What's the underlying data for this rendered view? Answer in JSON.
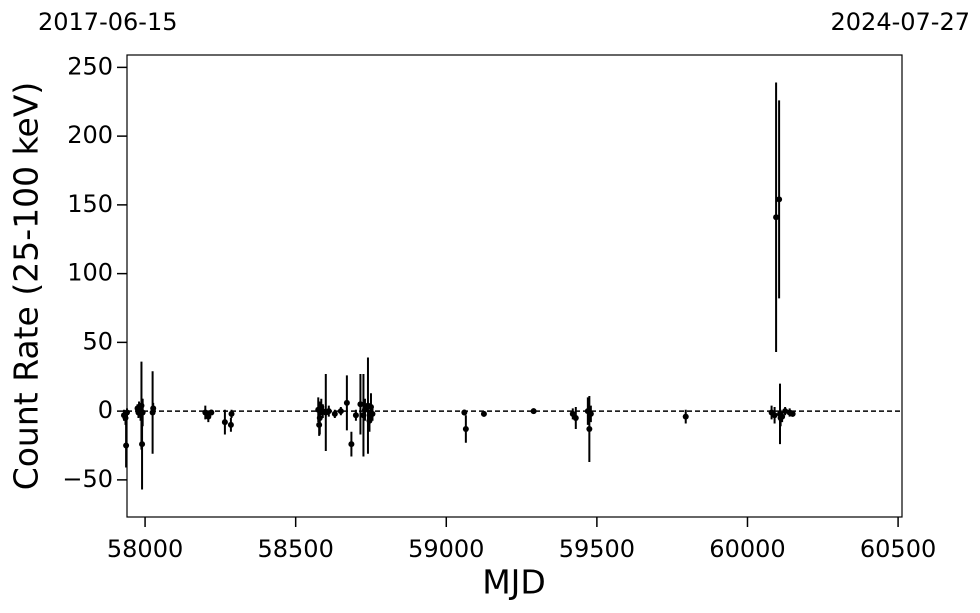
{
  "chart_data": {
    "type": "errorbar",
    "annotations": [
      "2017-06-15",
      "2024-07-27"
    ],
    "xlabel": "MJD",
    "ylabel": "Count Rate (25-100 keV)",
    "xlim": [
      57940,
      60513
    ],
    "ylim": [
      -77,
      259
    ],
    "xticks": [
      58000,
      58500,
      59000,
      59500,
      60000,
      60500
    ],
    "yticks": [
      {
        "value": -50,
        "label": "−50"
      },
      0,
      50,
      100,
      150,
      200,
      250
    ],
    "hline": 0,
    "series": [
      {
        "color": "#000000",
        "x": [
          57930,
          57935,
          57937,
          57940,
          57975,
          57978,
          57980,
          57983,
          57985,
          57988,
          57990,
          57992,
          58025,
          58027,
          58200,
          58210,
          58220,
          58265,
          58285,
          58287,
          58575,
          58578,
          58580,
          58585,
          58590,
          58600,
          58610,
          58630,
          58650,
          58670,
          58685,
          58700,
          58715,
          58725,
          58730,
          58740,
          58745,
          58750,
          58755,
          59060,
          59065,
          59125,
          59290,
          59420,
          59430,
          59470,
          59475,
          59480,
          59795,
          60080,
          60090,
          60095,
          60105,
          60108,
          60110,
          60115,
          60125,
          60140,
          60150
        ],
        "values": [
          -3,
          -5,
          -25,
          -1,
          2,
          -1,
          3,
          0,
          -2,
          4,
          -24,
          -1,
          -1,
          2,
          -1,
          -4,
          -1,
          -8,
          -10,
          -2,
          1,
          -10,
          -5,
          3,
          0,
          -1,
          0,
          -2,
          0,
          6,
          -24,
          -3,
          5,
          -3,
          1,
          4,
          -7,
          3,
          -2,
          -1,
          -13,
          -2,
          0,
          -2,
          -5,
          0,
          -13,
          -2,
          -4,
          -1,
          -3,
          141,
          154,
          -2,
          -5,
          -4,
          0,
          -1,
          -2
        ],
        "errors": [
          4,
          5,
          16,
          3,
          3,
          4,
          4,
          3,
          5,
          32,
          33,
          10,
          30,
          4,
          5,
          4,
          2,
          9,
          5,
          3,
          9,
          8,
          12,
          6,
          5,
          28,
          4,
          3,
          3,
          20,
          9,
          4,
          22,
          30,
          8,
          35,
          8,
          10,
          5,
          2,
          10,
          2,
          2,
          4,
          8,
          10,
          24,
          6,
          5,
          5,
          6,
          98,
          72,
          22,
          6,
          4,
          3,
          3,
          2
        ]
      }
    ]
  }
}
